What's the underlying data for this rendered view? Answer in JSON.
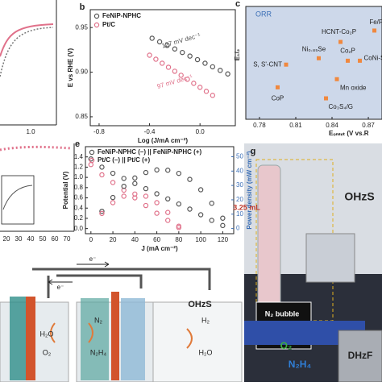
{
  "chart_data": [
    {
      "type": "line",
      "panel": "b",
      "xlabel": "Log (J/mA cm⁻²)",
      "ylabel": "E vs RHE (V)",
      "xlim": [
        -0.87,
        0.28
      ],
      "ylim": [
        0.84,
        0.97
      ],
      "xticks": [
        -0.8,
        -0.4,
        {
          "value": 0,
          "label": "0.0"
        }
      ],
      "yticks": [
        0.95,
        {
          "value": 0.9,
          "label": "0.90"
        },
        0.85
      ],
      "series": [
        {
          "name": "FeNiP-NPHC",
          "color": "#555555",
          "x": [
            -0.38,
            -0.32,
            -0.26,
            -0.2,
            -0.14,
            -0.08,
            -0.02,
            0.04,
            0.1,
            0.16,
            0.22
          ],
          "values": [
            0.938,
            0.934,
            0.93,
            0.926,
            0.922,
            0.918,
            0.914,
            0.91,
            0.906,
            0.902,
            0.898
          ]
        },
        {
          "name": "Pt/C",
          "color": "#e0718a",
          "x": [
            -0.4,
            -0.35,
            -0.3,
            -0.25,
            -0.2,
            -0.15,
            -0.1,
            -0.05,
            0,
            0.05,
            0.1
          ],
          "values": [
            0.919,
            0.9145,
            0.91,
            0.9055,
            0.901,
            0.8965,
            0.892,
            0.8875,
            0.883,
            0.8785,
            0.874
          ]
        }
      ],
      "annotations": [
        "127 mV dec⁻¹",
        "97 mV dec⁻¹"
      ]
    },
    {
      "type": "scatter",
      "panel": "c",
      "annotation": "ORR",
      "xlabel": "Eₒₙₛₑₜ (V vs.R",
      "ylabel": "E₁/₂",
      "xlim": [
        0.7687,
        0.8813
      ],
      "ylim": [
        0.605,
        0.923
      ],
      "xticks": [
        0.78,
        0.81,
        0.84,
        0.87
      ],
      "series": [
        {
          "color": "#f0883e",
          "x": [
            0.847,
            0.875,
            0.829,
            0.853,
            0.863,
            0.802,
            0.844,
            0.795,
            0.835
          ],
          "values": [
            0.823,
            0.855,
            0.777,
            0.77,
            0.77,
            0.759,
            0.718,
            0.695,
            0.664
          ]
        }
      ],
      "point_labels": [
        "HCNT-Co₂P",
        "Fe/F",
        "Ni₀.₈₅Se",
        "Co₂P",
        "CoNi-S",
        "S, S'-CNT",
        "Mn oxide",
        "CoP",
        "Co₃S₄/G"
      ]
    },
    {
      "type": "line",
      "panel": "e",
      "xlabel": "J (mA cm⁻²)",
      "ylabel": "Potential (V)",
      "y2label": "Power density (mW cm⁻²)",
      "xlim": [
        -5,
        130
      ],
      "ylim": [
        -0.1,
        1.6
      ],
      "y2lim": [
        -3.6,
        57
      ],
      "xticks": [
        0,
        20,
        40,
        60,
        80,
        100,
        120
      ],
      "yticks": [
        {
          "value": 0,
          "label": "0.0"
        },
        0.2,
        0.4,
        0.6,
        0.8,
        {
          "value": 1,
          "label": "1.0"
        },
        1.2,
        1.4
      ],
      "y2ticks": [
        0,
        10,
        20,
        30,
        40,
        50
      ],
      "legend": [
        {
          "label": "FeNiP-NPHC (–) || FeNiP-NPHC (+)",
          "color": "#555555"
        },
        {
          "label": "Pt/C (–) || Pt/C (+)",
          "color": "#e0718a"
        }
      ],
      "series": [
        {
          "color": "#555555",
          "x": [
            0,
            10,
            20,
            30,
            40,
            50,
            60,
            70,
            80,
            90,
            100,
            110,
            120
          ],
          "values": [
            1.36,
            1.2,
            1.08,
            0.98,
            0.88,
            0.78,
            0.68,
            0.58,
            0.48,
            0.38,
            0.27,
            0.16,
            0.06
          ]
        },
        {
          "color": "#e0718a",
          "x": [
            0,
            10,
            20,
            30,
            40,
            50,
            60,
            70,
            80
          ],
          "values": [
            1.25,
            1.05,
            0.9,
            0.75,
            0.6,
            0.45,
            0.3,
            0.16,
            0.02
          ]
        },
        {
          "color": "#555555",
          "axis": "y2",
          "x": [
            10,
            20,
            30,
            40,
            50,
            60,
            70,
            80,
            90,
            100,
            110,
            120
          ],
          "values": [
            12,
            21.6,
            29.4,
            35.2,
            39,
            40.8,
            40.6,
            38.4,
            34.2,
            27,
            17.6,
            7.2
          ]
        },
        {
          "color": "#e0718a",
          "axis": "y2",
          "x": [
            10,
            20,
            30,
            40,
            50,
            60,
            70,
            80
          ],
          "values": [
            10.5,
            18,
            22.5,
            24,
            22.5,
            18,
            11.2,
            1.6
          ]
        }
      ]
    }
  ],
  "partial_panels": {
    "a_xtick": "1.0",
    "d_xticks": [
      "20",
      "30",
      "40",
      "50",
      "60",
      "70"
    ]
  },
  "schematic": {
    "electron_top": "e⁻",
    "electron_left": "e⁻",
    "cell": "OHzS",
    "left_top": "H₂O",
    "left_bottom": "O₂",
    "mid_top": "N₂",
    "mid_bottom": "N₂H₄",
    "right_top": "H₂",
    "right_bottom": "H₂O"
  },
  "photo": {
    "panel": "g",
    "volume": "3.25 mL",
    "cell": "OHzS",
    "bubble": "N₂ bubble",
    "o2": "O₂",
    "n2h4": "N₂H₄",
    "device": "DHzF"
  }
}
